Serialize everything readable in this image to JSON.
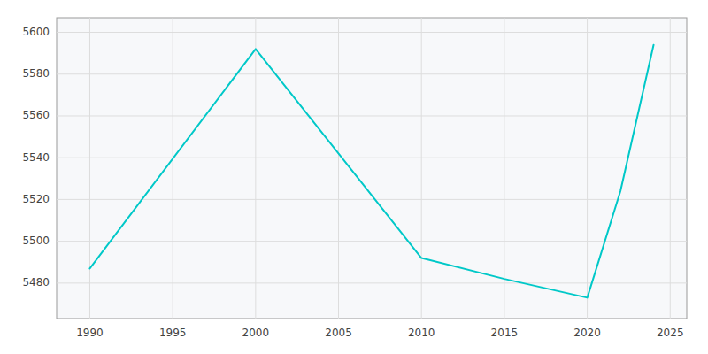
{
  "chart_data": {
    "type": "line",
    "x": [
      1990,
      2000,
      2010,
      2015,
      2020,
      2022,
      2024
    ],
    "values": [
      5487,
      5592,
      5492,
      5482,
      5473,
      5524,
      5594
    ],
    "color": "#00c8c8",
    "xlim": [
      1988,
      2026
    ],
    "ylim": [
      5463,
      5607
    ],
    "xticks": [
      1990,
      1995,
      2000,
      2005,
      2010,
      2015,
      2020,
      2025
    ],
    "yticks": [
      5480,
      5500,
      5520,
      5540,
      5560,
      5580,
      5600
    ],
    "grid": true
  }
}
